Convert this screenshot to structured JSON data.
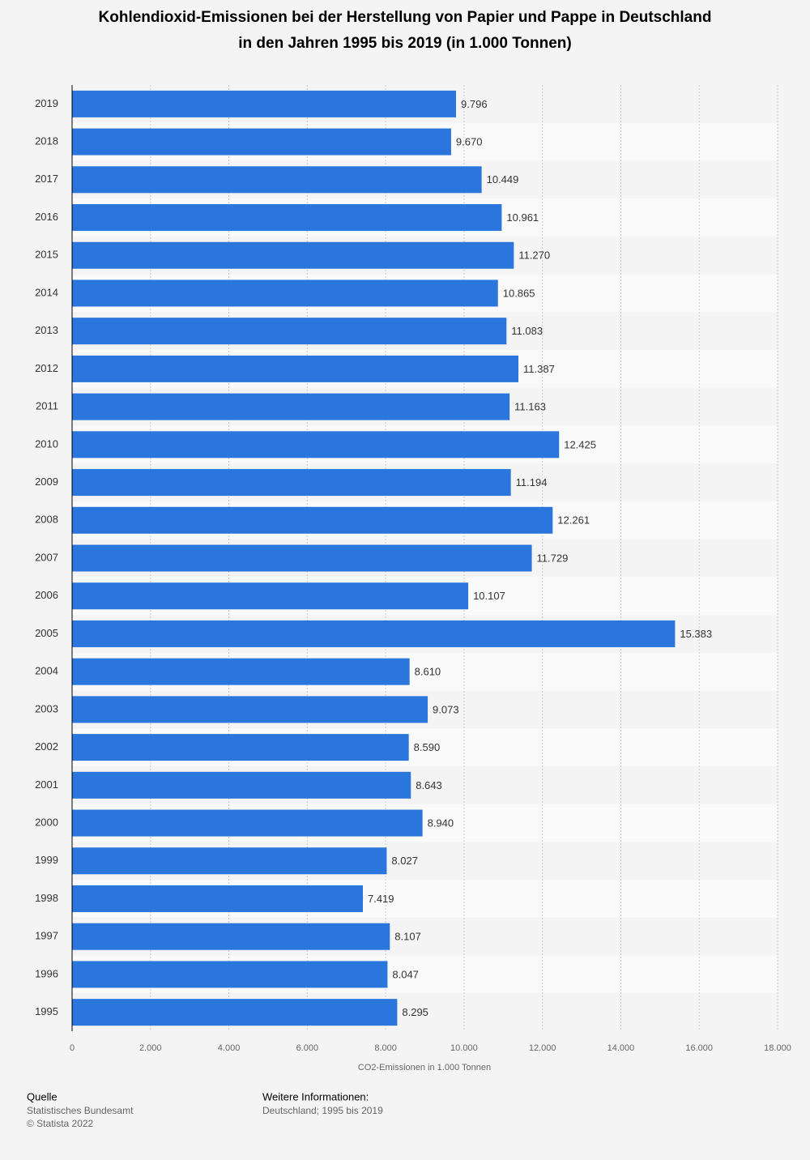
{
  "chart_data": {
    "type": "bar",
    "orientation": "horizontal",
    "title": [
      "Kohlendioxid-Emissionen bei der Herstellung von Papier und Pappe in Deutschland",
      "in den Jahren 1995 bis 2019 (in 1.000 Tonnen)"
    ],
    "x_label": "CO2-Emissionen in 1.000 Tonnen",
    "categories": [
      "2019",
      "2018",
      "2017",
      "2016",
      "2015",
      "2014",
      "2013",
      "2012",
      "2011",
      "2010",
      "2009",
      "2008",
      "2007",
      "2006",
      "2005",
      "2004",
      "2003",
      "2002",
      "2001",
      "2000",
      "1999",
      "1998",
      "1997",
      "1996",
      "1995"
    ],
    "values": [
      9796,
      9670,
      10449,
      10961,
      11270,
      10865,
      11083,
      11387,
      11163,
      12425,
      11194,
      12261,
      11729,
      10107,
      15383,
      8610,
      9073,
      8590,
      8643,
      8940,
      8027,
      7419,
      8107,
      8047,
      8295
    ],
    "value_labels": [
      "9.796",
      "9.670",
      "10.449",
      "10.961",
      "11.270",
      "10.865",
      "11.083",
      "11.387",
      "11.163",
      "12.425",
      "11.194",
      "12.261",
      "11.729",
      "10.107",
      "15.383",
      "8.610",
      "9.073",
      "8.590",
      "8.643",
      "8.940",
      "8.027",
      "7.419",
      "8.107",
      "8.047",
      "8.295"
    ],
    "color": "#2a76dd",
    "xlim": [
      0,
      18000
    ],
    "xticks": [
      0,
      {
        "value": 2000,
        "label": "2.000"
      },
      {
        "value": 4000,
        "label": "4.000"
      },
      {
        "value": 6000,
        "label": "6.000"
      },
      {
        "value": 8000,
        "label": "8.000"
      },
      {
        "value": 10000,
        "label": "10.000"
      },
      {
        "value": 12000,
        "label": "12.000"
      },
      {
        "value": 14000,
        "label": "14.000"
      },
      {
        "value": 16000,
        "label": "16.000"
      },
      {
        "value": 18000,
        "label": "18.000"
      }
    ],
    "grid": true
  },
  "footer": {
    "source_heading": "Quelle",
    "source": "Statistisches Bundesamt",
    "copyright": "© Statista 2022",
    "info_heading": "Weitere Informationen:",
    "info": "Deutschland; 1995 bis 2019"
  }
}
